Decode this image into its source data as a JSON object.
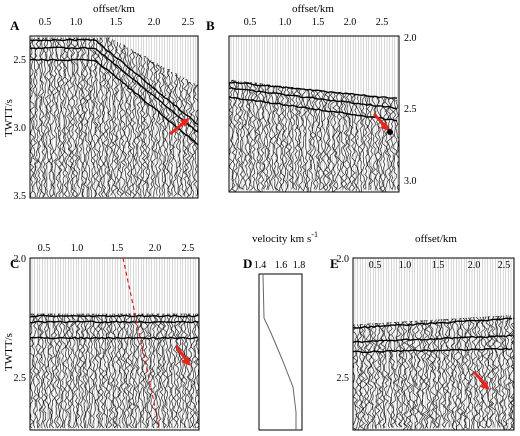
{
  "figure": {
    "panels": [
      {
        "id": "A",
        "letter": "A",
        "title": "offset/km",
        "ylabel": "TWTT/s",
        "x_ticks": [
          "0.5",
          "1.0",
          "1.5",
          "2.0",
          "2.5"
        ],
        "y_ticks": [
          "2.5",
          "3.0",
          "3.5"
        ]
      },
      {
        "id": "B",
        "letter": "B",
        "title": "offset/km",
        "x_ticks": [
          "0.5",
          "1.0",
          "1.5",
          "2.0",
          "2.5"
        ],
        "y_ticks": [
          "2.0",
          "2.5",
          "3.0"
        ]
      },
      {
        "id": "C",
        "letter": "C",
        "ylabel": "TWTT/s",
        "x_ticks": [
          "0.5",
          "1.0",
          "1.5",
          "2.0",
          "2.5"
        ],
        "y_ticks": [
          "2.0",
          "2.5"
        ]
      },
      {
        "id": "D",
        "letter": "D",
        "title": "velocity km s",
        "title_sup": "-1",
        "x_ticks": [
          "1.4",
          "1.6",
          "1.8"
        ]
      },
      {
        "id": "E",
        "letter": "E",
        "title": "offset/km",
        "x_ticks": [
          "0.5",
          "1.0",
          "1.5",
          "2.0",
          "2.5"
        ],
        "y_ticks": [
          "2.0",
          "2.5"
        ]
      }
    ],
    "colors": {
      "arrow": "#e8251c",
      "dashed_line": "#d21f1f",
      "trace": "#111111",
      "velocity_curve": "#666666"
    }
  }
}
